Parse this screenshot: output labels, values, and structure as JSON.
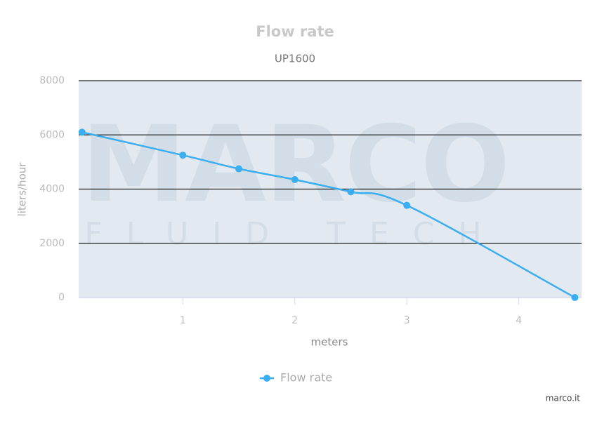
{
  "chart_data": {
    "type": "line",
    "title": "Flow rate",
    "subtitle": "UP1600",
    "x_label": "meters",
    "y_label": "liters/hour",
    "x": [
      0.1,
      1,
      1.5,
      2,
      2.5,
      3,
      4.5
    ],
    "series": [
      {
        "name": "Flow rate",
        "color": "#3aaef0",
        "values": [
          6100,
          5250,
          4750,
          4350,
          3900,
          3400,
          0
        ]
      }
    ],
    "xlim": [
      0.07,
      4.56
    ],
    "xticks": [
      1,
      2,
      3,
      4
    ],
    "ylim": [
      0,
      8000
    ],
    "yticks": [
      0,
      2000,
      4000,
      6000,
      8000
    ],
    "grid": true,
    "legend": "bottom",
    "watermark": "MARCO",
    "watermark_subtitle": "FLUID TECH",
    "credits": "marco.it"
  }
}
